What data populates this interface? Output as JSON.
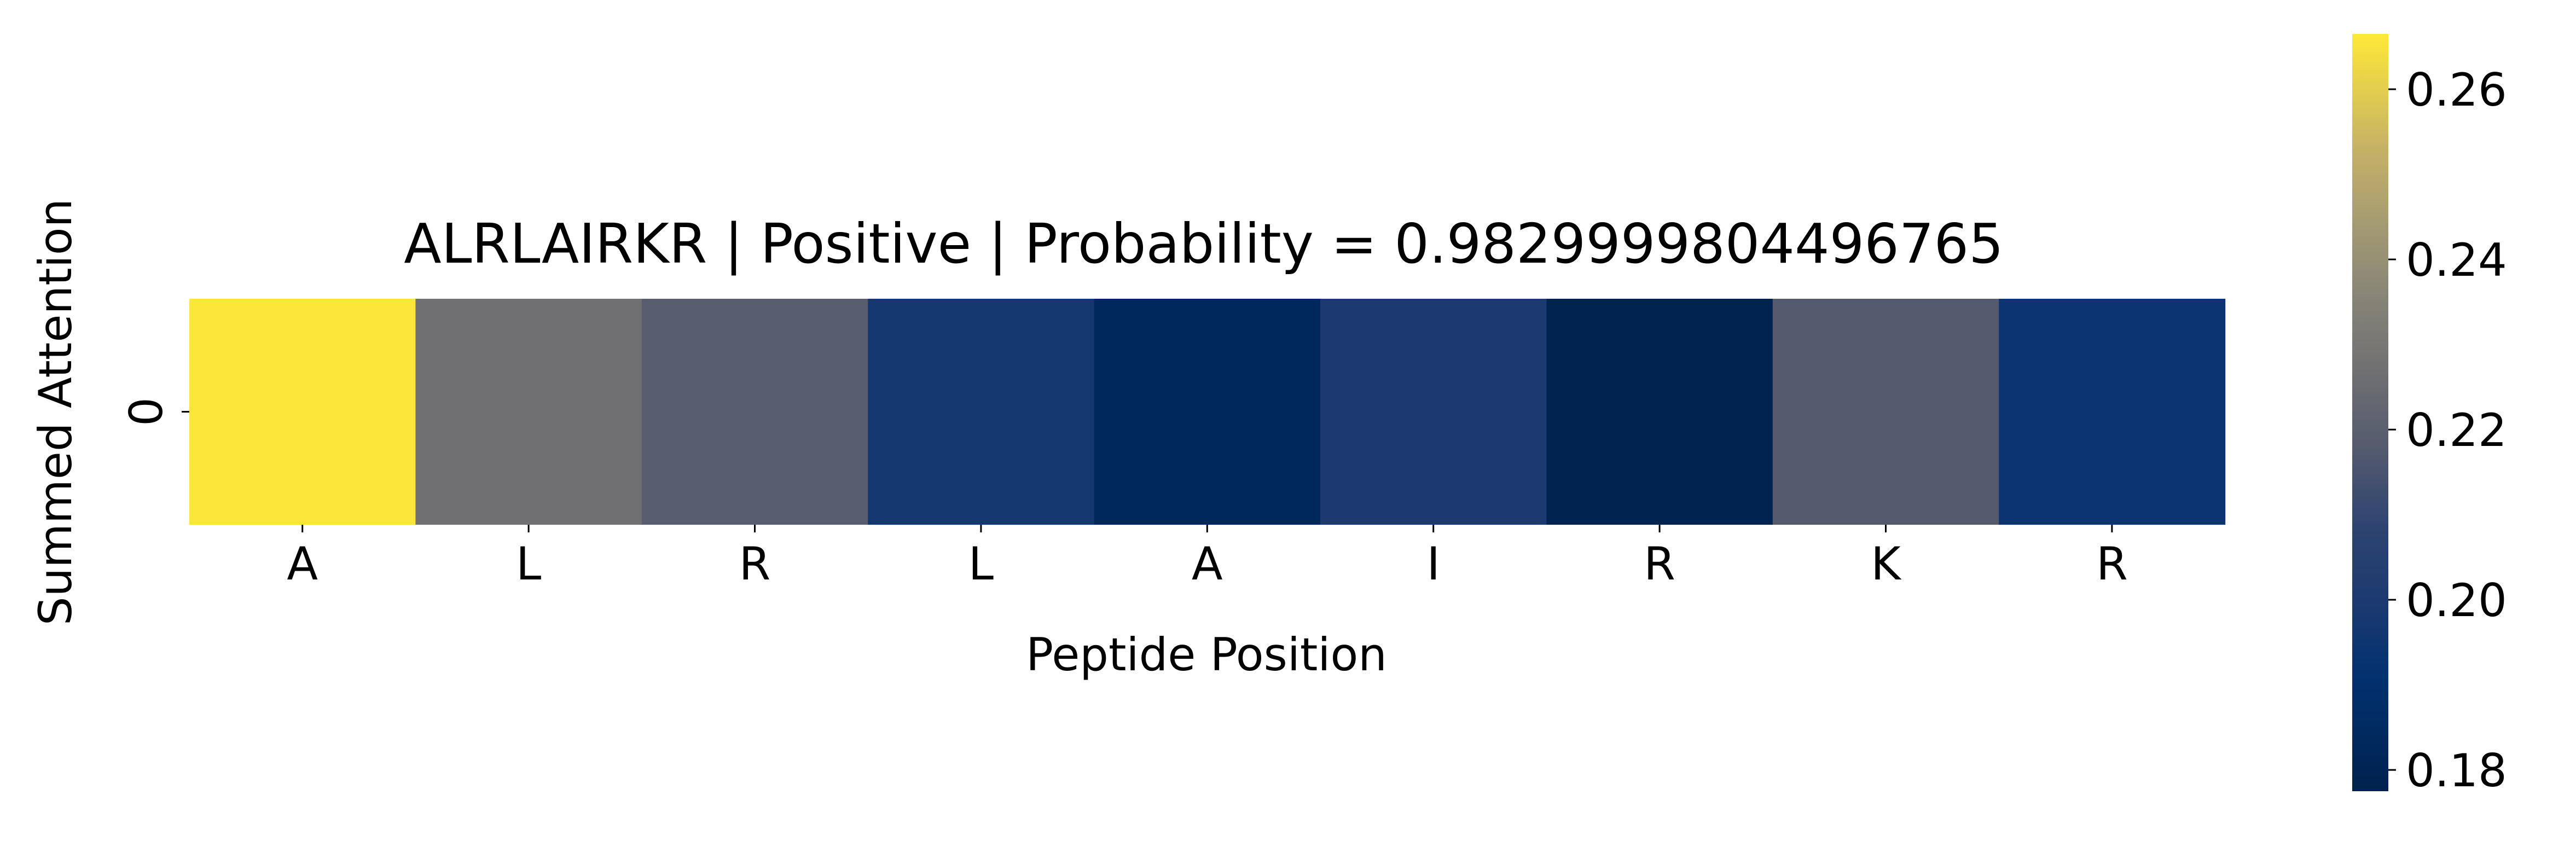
{
  "chart_data": {
    "type": "heatmap",
    "title": "ALRLAIRKR | Positive | Probability = 0.9829999804496765",
    "xlabel": "Peptide Position",
    "ylabel": "Summed Attention",
    "x_categories": [
      "A",
      "L",
      "R",
      "L",
      "A",
      "I",
      "R",
      "K",
      "R"
    ],
    "y_categories": [
      "0"
    ],
    "values": [
      [
        0.266,
        0.227,
        0.219,
        0.197,
        0.183,
        0.2,
        0.178,
        0.218,
        0.194
      ]
    ],
    "colormap": "cividis",
    "colorbar": {
      "min": 0.1775,
      "max": 0.2665,
      "ticks": [
        0.18,
        0.2,
        0.22,
        0.24,
        0.26
      ],
      "tick_labels": [
        "0.18",
        "0.20",
        "0.22",
        "0.24",
        "0.26"
      ]
    },
    "grid": false,
    "legend": "colorbar-right"
  }
}
